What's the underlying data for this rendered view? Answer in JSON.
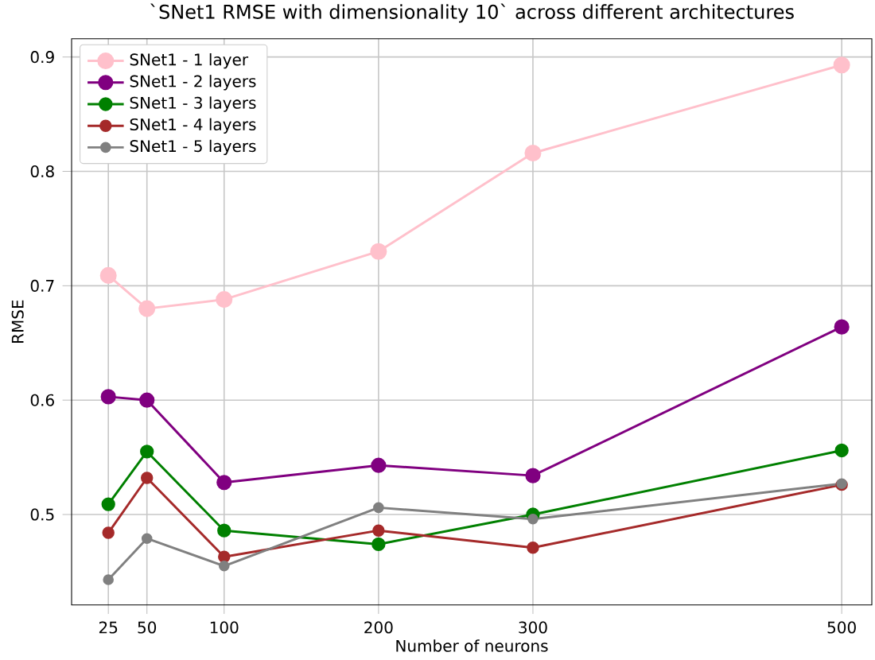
{
  "chart_data": {
    "type": "line",
    "title": "`SNet1 RMSE with dimensionality 10` across different architectures",
    "xlabel": "Number of neurons",
    "ylabel": "RMSE",
    "x": [
      25,
      50,
      100,
      200,
      300,
      500
    ],
    "series": [
      {
        "name": "SNet1 - 1 layer",
        "color": "#ffc0cb",
        "values": [
          0.709,
          0.68,
          0.688,
          0.73,
          0.816,
          0.893
        ]
      },
      {
        "name": "SNet1 - 2 layers",
        "color": "#800080",
        "values": [
          0.603,
          0.6,
          0.528,
          0.543,
          0.534,
          0.664
        ]
      },
      {
        "name": "SNet1 - 3 layers",
        "color": "#008000",
        "values": [
          0.509,
          0.555,
          0.486,
          0.474,
          0.5,
          0.556
        ]
      },
      {
        "name": "SNet1 - 4 layers",
        "color": "#a52a2a",
        "values": [
          0.484,
          0.532,
          0.463,
          0.486,
          0.471,
          0.526
        ]
      },
      {
        "name": "SNet1 - 5 layers",
        "color": "#808080",
        "values": [
          0.443,
          0.479,
          0.455,
          0.506,
          0.496,
          0.527
        ]
      }
    ],
    "xlim": [
      1.2,
      519.5
    ],
    "ylim": [
      0.421,
      0.916
    ],
    "xticks": [
      25,
      50,
      100,
      200,
      300,
      500
    ],
    "yticks": [
      0.5,
      0.6,
      0.7,
      0.8,
      0.9
    ],
    "grid": true,
    "legend": "top left",
    "marker": "circle",
    "line_style": "solid"
  }
}
